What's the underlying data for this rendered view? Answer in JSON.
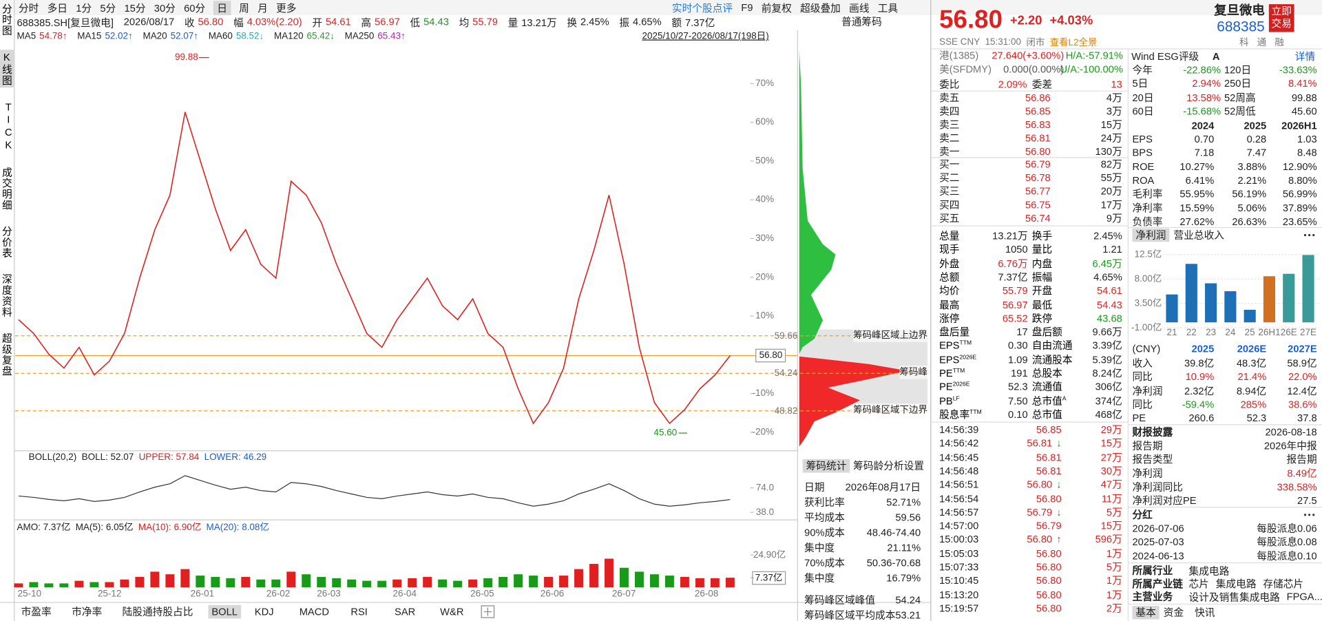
{
  "toolbar": {
    "periods": [
      "分时",
      "多日",
      "1分",
      "5分",
      "15分",
      "30分",
      "60分",
      "日",
      "周",
      "月",
      "更多"
    ],
    "active_period": 7,
    "tools": [
      "实时个股点评",
      "F9",
      "前复权",
      "超级叠加",
      "画线",
      "工具"
    ],
    "symbol": "688385.SH[复旦微电]",
    "date": "2026/08/17",
    "info": [
      {
        "label": "收",
        "value": "56.80",
        "color": "#e02020"
      },
      {
        "label": "幅",
        "value": "4.03%(2.20)",
        "color": "#e02020"
      },
      {
        "label": "开",
        "value": "54.61",
        "color": "#e02020"
      },
      {
        "label": "高",
        "value": "56.97",
        "color": "#e02020"
      },
      {
        "label": "低",
        "value": "54.43",
        "color": "#1a9a1a"
      },
      {
        "label": "均",
        "value": "55.79",
        "color": "#e02020"
      },
      {
        "label": "量",
        "value": "13.21万",
        "color": "#222222"
      },
      {
        "label": "换",
        "value": "2.45%",
        "color": "#222222"
      },
      {
        "label": "振",
        "value": "4.65%",
        "color": "#222222"
      },
      {
        "label": "额",
        "value": "7.37亿",
        "color": "#222222"
      }
    ],
    "chip_title": "普通筹码"
  },
  "ma_row": {
    "items": [
      {
        "name": "MA5",
        "value": "54.78↑",
        "color": "#e02020"
      },
      {
        "name": "MA15",
        "value": "52.02↑",
        "color": "#1a5fd0"
      },
      {
        "name": "MA20",
        "value": "52.07↑",
        "color": "#1a5fd0"
      },
      {
        "name": "MA60",
        "value": "58.52↓",
        "color": "#18b0c8"
      },
      {
        "name": "MA120",
        "value": "65.42↓",
        "color": "#28a028"
      },
      {
        "name": "MA250",
        "value": "65.43↑",
        "color": "#c020c0"
      }
    ],
    "range": "2025/10/27-2026/08/17(198日)"
  },
  "side_tabs": [
    "分时图",
    "K线图",
    "TICK",
    "成交明细",
    "分价表",
    "深度资料",
    "超级复盘"
  ],
  "active_side_tab": 1,
  "kline": {
    "pct_lim": [
      -23.7,
      79.6
    ],
    "pct_ticks": [
      {
        "value": 70,
        "label": "70%"
      },
      {
        "value": 60,
        "label": "60%"
      },
      {
        "value": 50,
        "label": "50%"
      },
      {
        "value": 40,
        "label": "40%"
      },
      {
        "value": 30,
        "label": "30%"
      },
      {
        "value": 20,
        "label": "20%"
      },
      {
        "value": 10,
        "label": "10%"
      },
      {
        "value": -10,
        "label": "-10%"
      },
      {
        "value": -20,
        "label": "-20%"
      }
    ],
    "price_lim": [
      43.65,
      101.5
    ],
    "price_labels": [
      59.66,
      {
        "value": 56.8,
        "label": "56.80"
      },
      54.24,
      48.82
    ],
    "high": 99.88,
    "low": {
      "value": 45.6,
      "label": "45.60"
    },
    "closes": [
      62,
      60,
      57,
      55,
      58,
      54,
      56,
      60,
      68,
      75,
      80,
      92,
      85,
      78,
      72,
      75,
      70,
      68,
      82,
      80,
      76,
      70,
      65,
      60,
      58,
      62,
      65,
      68,
      64,
      62,
      65,
      60,
      58,
      52,
      47,
      50,
      55,
      65,
      72,
      80,
      70,
      58,
      50,
      47,
      49,
      52,
      54,
      56.8
    ],
    "color": "#e02020"
  },
  "chip": {
    "labels": [
      "筹码峰区域上边界",
      "筹码峰",
      "筹码峰区域下边界"
    ]
  },
  "boll": {
    "legend": [
      {
        "text": "BOLL(20,2)",
        "color": "#222222"
      },
      {
        "text": "BOLL: 52.07",
        "color": "#222222"
      },
      {
        "text": "UPPER: 57.84",
        "color": "#e02020"
      },
      {
        "text": "LOWER: 46.29",
        "color": "#1a5fd0"
      }
    ],
    "ylim": [
      29.3,
      110
    ],
    "ticks": [
      {
        "value": 74,
        "label": "74.0"
      },
      {
        "value": 38,
        "label": "38.0"
      }
    ]
  },
  "amo": {
    "legend": [
      {
        "text": "AMO: 7.37亿",
        "color": "#222222"
      },
      {
        "text": "MA(5): 6.05亿",
        "color": "#222222"
      },
      {
        "text": "MA(10): 6.90亿",
        "color": "#e02020"
      },
      {
        "text": "MA(20): 8.08亿",
        "color": "#1a5fd0"
      }
    ],
    "ylim": [
      0,
      46
    ],
    "ticks": [
      {
        "value": 24.9,
        "label": "24.90亿"
      },
      {
        "value": 7.37,
        "label": "7.37亿"
      }
    ],
    "values": [
      3,
      4,
      3,
      3,
      5,
      4,
      4,
      6,
      8,
      12,
      10,
      14,
      9,
      8,
      7,
      8,
      6,
      6,
      12,
      10,
      8,
      7,
      6,
      5,
      5,
      6,
      7,
      8,
      6,
      5,
      6,
      7,
      8,
      10,
      9,
      8,
      9,
      14,
      18,
      22,
      15,
      12,
      10,
      9,
      8,
      7,
      7,
      7.37
    ]
  },
  "x_labels": [
    "25-10",
    "25-12",
    "26-01",
    "26-02",
    "26-03",
    "26-04",
    "26-05",
    "26-06",
    "26-07",
    "26-08"
  ],
  "bottom_tabs": [
    "市盈率",
    "市净率",
    "陆股通持股占比",
    "BOLL",
    "KDJ",
    "MACD",
    "RSI",
    "SAR",
    "W&R"
  ],
  "active_bottom_tab": 3,
  "chip_stats": {
    "tabs": [
      "筹码统计",
      "筹码龄分析",
      "设置"
    ],
    "rows": [
      [
        "日期",
        "2026年08月17日"
      ],
      [
        "获利比率",
        "52.71%"
      ],
      [
        "平均成本",
        "59.56"
      ],
      [
        "90%成本",
        "48.46-74.40"
      ],
      [
        "集中度",
        "21.11%"
      ],
      [
        "70%成本",
        "50.36-70.68"
      ],
      [
        "集中度",
        "16.79%"
      ]
    ],
    "peak_rows": [
      [
        "筹码峰区域峰值",
        "54.24"
      ],
      [
        "筹码峰区域平均成本",
        "53.21"
      ]
    ]
  },
  "quote": {
    "price": "56.80",
    "change": "+2.20",
    "change_pct": "+4.03%",
    "name": "复旦微电",
    "code": "688385",
    "trade_button": "立即交易",
    "market": "SSE CNY",
    "time": "15:31:00",
    "status": "闭市",
    "l2": "查看L2全景",
    "badges": [
      "科",
      "通",
      "融"
    ],
    "cross": [
      {
        "label": "港(1385)",
        "value": "27.640(+3.60%)",
        "ratio": "H/A:-57.91%",
        "color": "#e02020"
      },
      {
        "label": "美(SFDMY)",
        "value": "0.000(0.00%)",
        "ratio": "U/A:-100.00%",
        "color": "#555555"
      }
    ],
    "bid_ratio": [
      "委比",
      "2.09%",
      "委差",
      "13"
    ],
    "asks": [
      [
        "卖五",
        "56.86",
        "4万"
      ],
      [
        "卖四",
        "56.85",
        "3万"
      ],
      [
        "卖三",
        "56.83",
        "15万"
      ],
      [
        "卖二",
        "56.81",
        "24万"
      ],
      [
        "卖一",
        "56.80",
        "130万"
      ]
    ],
    "bids": [
      [
        "买一",
        "56.79",
        "82万"
      ],
      [
        "买二",
        "56.78",
        "55万"
      ],
      [
        "买三",
        "56.77",
        "20万"
      ],
      [
        "买四",
        "56.75",
        "17万"
      ],
      [
        "买五",
        "56.74",
        "9万"
      ]
    ],
    "stats": [
      [
        {
          "t": "总量",
          "v": "13.21万"
        },
        {
          "t": "换手",
          "v": "2.45%"
        }
      ],
      [
        {
          "t": "现手",
          "v": "1050"
        },
        {
          "t": "量比",
          "v": "1.21"
        }
      ],
      [
        {
          "t": "外盘",
          "v": "6.76万",
          "color": "#e02020"
        },
        {
          "t": "内盘",
          "v": "6.45万",
          "color": "#1a9a1a"
        }
      ],
      [
        {
          "t": "总额",
          "v": "7.37亿"
        },
        {
          "t": "振幅",
          "v": "4.65%"
        }
      ],
      [
        {
          "t": "均价",
          "v": "55.79",
          "color": "#e02020"
        },
        {
          "t": "开盘",
          "v": "54.61",
          "color": "#e02020"
        }
      ],
      [
        {
          "t": "最高",
          "v": "56.97",
          "color": "#e02020"
        },
        {
          "t": "最低",
          "v": "54.43",
          "color": "#e02020"
        }
      ],
      [
        {
          "t": "涨停",
          "v": "65.52",
          "color": "#e02020"
        },
        {
          "t": "跌停",
          "v": "43.68",
          "color": "#1a9a1a"
        }
      ],
      [
        {
          "t": "盘后量",
          "v": "17"
        },
        {
          "t": "盘后额",
          "v": "9.66万"
        }
      ],
      [
        {
          "t": "EPS",
          "sup": "TTM",
          "v": "0.30"
        },
        {
          "t": "自由流通",
          "v": "3.39亿"
        }
      ],
      [
        {
          "t": "EPS",
          "sup": "2026E",
          "v": "1.09"
        },
        {
          "t": "流通股本",
          "v": "5.39亿"
        }
      ],
      [
        {
          "t": "PE",
          "sup": "TTM",
          "v": "191"
        },
        {
          "t": "总股本",
          "v": "8.24亿"
        }
      ],
      [
        {
          "t": "PE",
          "sup": "2026E",
          "v": "52.3"
        },
        {
          "t": "流通值",
          "v": "306亿"
        }
      ],
      [
        {
          "t": "PB",
          "sup": "LF",
          "v": "7.50"
        },
        {
          "t": "总市值",
          "sup": "A",
          "v": "374亿"
        }
      ],
      [
        {
          "t": "股息率",
          "sup": "TTM",
          "v": "0.10"
        },
        {
          "t": "总市值",
          "v": "468亿"
        }
      ]
    ],
    "ticks": [
      {
        "time": "14:56:39",
        "price": "56.85",
        "vol": "29万"
      },
      {
        "time": "14:56:42",
        "price": "56.81",
        "dir": "↓",
        "vol": "15万"
      },
      {
        "time": "14:56:45",
        "price": "56.81",
        "vol": "27万"
      },
      {
        "time": "14:56:48",
        "price": "56.81",
        "vol": "30万"
      },
      {
        "time": "14:56:51",
        "price": "56.80",
        "dir": "↓",
        "vol": "47万"
      },
      {
        "time": "14:56:54",
        "price": "56.80",
        "vol": "11万"
      },
      {
        "time": "14:56:57",
        "price": "56.79",
        "dir": "↓",
        "vol": "5万"
      },
      {
        "time": "14:57:00",
        "price": "56.79",
        "vol": "15万"
      },
      {
        "time": "15:00:03",
        "price": "56.80",
        "dir": "↑",
        "vol": "596万"
      },
      {
        "time": "15:05:03",
        "price": "56.80",
        "vol": "1万"
      },
      {
        "time": "15:07:33",
        "price": "56.80",
        "vol": "5万"
      },
      {
        "time": "15:10:45",
        "price": "56.80",
        "vol": "1万"
      },
      {
        "time": "15:13:20",
        "price": "56.80",
        "vol": "1万"
      },
      {
        "time": "15:19:57",
        "price": "56.80",
        "vol": "2万"
      }
    ]
  },
  "profile_panel": {
    "esg": {
      "label": "Wind ESG评级",
      "rating": "A",
      "link": "详情"
    },
    "perf": [
      [
        "今年",
        "-22.86%",
        "120日",
        "-33.63%"
      ],
      [
        "5日",
        "2.94%",
        "250日",
        "8.41%"
      ],
      [
        "20日",
        "13.58%",
        "52周高",
        "99.88"
      ],
      [
        "60日",
        "-15.68%",
        "52周低",
        "45.60"
      ]
    ],
    "fin": {
      "header": [
        "2024",
        "2025",
        "2026H1"
      ],
      "rows": [
        [
          "EPS",
          "0.70",
          "0.28",
          "1.03"
        ],
        [
          "BPS",
          "7.18",
          "7.47",
          "8.48"
        ],
        [
          "ROE",
          "10.27%",
          "3.88%",
          "12.90%"
        ],
        [
          "ROA",
          "6.41%",
          "2.21%",
          "8.80%"
        ],
        [
          "毛利率",
          "55.95%",
          "56.19%",
          "56.99%"
        ],
        [
          "净利率",
          "15.59%",
          "5.06%",
          "37.89%"
        ],
        [
          "负债率",
          "27.62%",
          "26.63%",
          "23.65%"
        ]
      ]
    },
    "profit_chart": {
      "type": "bar",
      "tabs": [
        "净利润",
        "营业总收入"
      ],
      "ylim": [
        -2.7,
        14.36
      ],
      "yticks": [
        {
          "value": 12.5,
          "label": "12.5亿"
        },
        {
          "value": 8,
          "label": "8.00亿"
        },
        {
          "value": 3.5,
          "label": "3.50亿"
        },
        {
          "value": -1,
          "label": "-1.00亿"
        }
      ],
      "categories": [
        "21",
        "22",
        "23",
        "24",
        "25",
        "26H1",
        "26E",
        "27E"
      ],
      "values": [
        5.14,
        10.77,
        7.19,
        5.74,
        2.32,
        8.49,
        8.94,
        12.4
      ],
      "colors": [
        "#1e6fb5",
        "#1e6fb5",
        "#1e6fb5",
        "#1e6fb5",
        "#1e6fb5",
        "#d07020",
        "#3a9a9a",
        "#3a9a9a"
      ]
    },
    "forecast": {
      "header": [
        "(CNY)",
        "2025",
        "2026E",
        "2027E"
      ],
      "rows": [
        [
          "收入",
          "39.8亿",
          "48.3亿",
          "58.9亿"
        ],
        [
          "同比",
          "10.9%",
          "21.4%",
          "22.0%"
        ],
        [
          "净利润",
          "2.32亿",
          "8.94亿",
          "12.4亿"
        ],
        [
          "同比",
          "-59.4%",
          "285%",
          "38.6%"
        ],
        [
          "PE",
          "260.6",
          "52.3",
          "37.8"
        ]
      ]
    },
    "report": {
      "title": "财报披露",
      "date": "2026-08-18",
      "rows": [
        [
          "报告期",
          "2026年中报"
        ],
        [
          "报告类型",
          "报告期"
        ],
        [
          "净利润",
          "8.49亿"
        ],
        [
          "净利润同比",
          "338.58%"
        ],
        [
          "净利润对应PE",
          "27.5"
        ]
      ]
    },
    "dividend": {
      "title": "分红",
      "rows": [
        [
          "2026-07-06",
          "每股派息0.06"
        ],
        [
          "2025-07-03",
          "每股派息0.08"
        ],
        [
          "2024-06-13",
          "每股派息0.10"
        ]
      ]
    },
    "profile": [
      {
        "label": "所属行业",
        "items": [
          "集成电路"
        ]
      },
      {
        "label": "所属产业链",
        "items": [
          "芯片",
          "集成电路",
          "存储芯片"
        ]
      },
      {
        "label": "主营业务",
        "items": [
          "设计及销售集成电路",
          "FPGA..."
        ]
      }
    ],
    "bottom_tabs": [
      "基本",
      "资金",
      "快讯"
    ]
  }
}
